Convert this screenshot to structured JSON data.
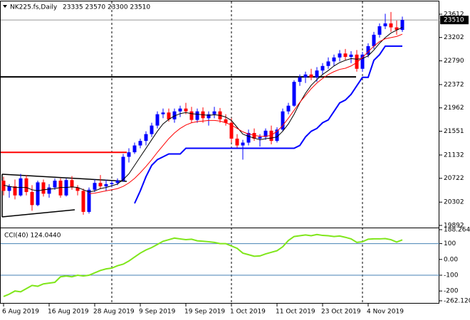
{
  "chart_data": [
    {
      "type": "candlestick",
      "title": "NK225.fs,Daily",
      "ohlc_label": "23335 23570 23300 23510",
      "categories": [
        "6 Aug 2019",
        null,
        null,
        null,
        null,
        null,
        null,
        null,
        "16 Aug 2019",
        null,
        null,
        null,
        null,
        null,
        null,
        null,
        "28 Aug 2019",
        null,
        null,
        null,
        null,
        null,
        null,
        null,
        "9 Sep 2019",
        null,
        null,
        null,
        null,
        null,
        null,
        null,
        "19 Sep 2019",
        null,
        null,
        null,
        null,
        null,
        null,
        null,
        "1 Oct 2019",
        null,
        null,
        null,
        null,
        null,
        null,
        null,
        "11 Oct 2019",
        null,
        null,
        null,
        null,
        null,
        null,
        null,
        "23 Oct 2019",
        null,
        null,
        null,
        null,
        null,
        null,
        null,
        "4 Nov 2019",
        null,
        null,
        null,
        null,
        null,
        null
      ],
      "open": [
        20680,
        20500,
        20580,
        20420,
        20720,
        20480,
        20250,
        20650,
        20450,
        20560,
        20680,
        20420,
        20690,
        20560,
        20500,
        20130,
        20520,
        20640,
        20580,
        20620,
        20640,
        20680,
        21100,
        21180,
        21300,
        21380,
        21500,
        21650,
        21850,
        21880,
        21760,
        21900,
        21950,
        21900,
        21750,
        21900,
        21780,
        21850,
        21900,
        21760,
        21700,
        21420,
        21300,
        21350,
        21520,
        21420,
        21450,
        21560,
        21380,
        21580,
        21900,
        22000,
        22420,
        22500,
        22550,
        22500,
        22620,
        22700,
        22780,
        22850,
        22920,
        22860,
        22900,
        22650,
        22900,
        23050,
        23250,
        23400,
        23450,
        23380,
        23335
      ],
      "high": [
        20750,
        20620,
        20700,
        20800,
        20780,
        20600,
        20680,
        20700,
        20620,
        20720,
        20720,
        20720,
        20760,
        20600,
        20540,
        20560,
        20700,
        20780,
        20700,
        20680,
        20720,
        21150,
        21250,
        21350,
        21420,
        21550,
        21700,
        21900,
        21950,
        21950,
        21950,
        22000,
        22050,
        21980,
        21950,
        21970,
        21900,
        21980,
        21960,
        21850,
        21780,
        21500,
        21400,
        21580,
        21600,
        21500,
        21600,
        21650,
        21620,
        21950,
        22050,
        22450,
        22550,
        22600,
        22650,
        22680,
        22750,
        22850,
        22900,
        22980,
        23000,
        22960,
        22980,
        22950,
        23100,
        23300,
        23450,
        23620,
        23650,
        23500,
        23570
      ],
      "low": [
        20420,
        20380,
        20350,
        20400,
        20420,
        20150,
        20230,
        20400,
        20380,
        20520,
        20380,
        20400,
        20520,
        20420,
        20080,
        20100,
        20480,
        20540,
        20500,
        20560,
        20600,
        20660,
        21000,
        21150,
        21250,
        21300,
        21450,
        21600,
        21780,
        21720,
        21700,
        21800,
        21850,
        21700,
        21700,
        21700,
        21650,
        21780,
        21700,
        21650,
        21350,
        21250,
        21050,
        21300,
        21380,
        21280,
        21400,
        21320,
        21350,
        21550,
        21850,
        21980,
        22350,
        22400,
        22450,
        22420,
        22550,
        22650,
        22700,
        22780,
        22800,
        22750,
        22600,
        22600,
        22850,
        23000,
        23200,
        23350,
        23300,
        23250,
        23300
      ],
      "close": [
        20500,
        20580,
        20420,
        20720,
        20480,
        20250,
        20650,
        20450,
        20560,
        20680,
        20420,
        20690,
        20560,
        20500,
        20130,
        20520,
        20640,
        20580,
        20620,
        20640,
        20680,
        21100,
        21180,
        21300,
        21380,
        21500,
        21650,
        21850,
        21880,
        21760,
        21900,
        21950,
        21900,
        21750,
        21900,
        21780,
        21850,
        21900,
        21760,
        21700,
        21420,
        21300,
        21350,
        21520,
        21420,
        21450,
        21560,
        21380,
        21580,
        21900,
        22000,
        22420,
        22500,
        22550,
        22500,
        22620,
        22700,
        22780,
        22850,
        22920,
        22860,
        22900,
        22650,
        22900,
        23050,
        23250,
        23400,
        23450,
        23380,
        23335,
        23510
      ],
      "up_color": "#0000ff",
      "down_color": "#ff0000",
      "series": [
        {
          "color": "#000000",
          "width": 1,
          "values": [
            20600,
            20580,
            20560,
            20560,
            20560,
            20520,
            20500,
            20520,
            20530,
            20540,
            20560,
            20560,
            20570,
            20560,
            20520,
            20480,
            20500,
            20540,
            20560,
            20590,
            20620,
            20700,
            20800,
            20950,
            21100,
            21250,
            21400,
            21550,
            21680,
            21760,
            21820,
            21860,
            21880,
            21860,
            21850,
            21840,
            21830,
            21840,
            21830,
            21800,
            21740,
            21620,
            21500,
            21460,
            21430,
            21400,
            21420,
            21430,
            21450,
            21550,
            21680,
            21850,
            22050,
            22220,
            22360,
            22460,
            22550,
            22620,
            22700,
            22760,
            22800,
            22830,
            22820,
            22830,
            22880,
            22980,
            23100,
            23200,
            23280,
            23330,
            23380
          ]
        },
        {
          "color": "#ff0000",
          "width": 1,
          "values": [
            null,
            null,
            null,
            null,
            null,
            null,
            null,
            null,
            null,
            null,
            null,
            null,
            null,
            null,
            null,
            20450,
            20460,
            20480,
            20500,
            20520,
            20540,
            20580,
            20640,
            20720,
            20820,
            20930,
            21050,
            21180,
            21300,
            21420,
            21520,
            21600,
            21660,
            21700,
            21720,
            21730,
            21740,
            21740,
            21730,
            21700,
            21660,
            21600,
            21540,
            21500,
            21480,
            21460,
            21460,
            21480,
            21550,
            21650,
            21780,
            21920,
            22060,
            22180,
            22300,
            22400,
            22480,
            22550,
            22600,
            22640,
            22660,
            22700,
            22760,
            22850,
            22950,
            23050,
            23130,
            23180,
            23200,
            23220,
            23260
          ]
        },
        {
          "color": "#0000ff",
          "width": 2,
          "values": [
            null,
            null,
            null,
            null,
            null,
            null,
            null,
            null,
            null,
            null,
            null,
            null,
            null,
            null,
            null,
            null,
            null,
            null,
            null,
            null,
            null,
            null,
            null,
            20280,
            20500,
            20750,
            20950,
            21050,
            21100,
            21150,
            21150,
            21150,
            21250,
            21250,
            21250,
            21250,
            21250,
            21250,
            21250,
            21250,
            21250,
            21250,
            21250,
            21250,
            21250,
            21250,
            21250,
            21250,
            21250,
            21250,
            21250,
            21250,
            21300,
            21450,
            21550,
            21600,
            21700,
            21750,
            21900,
            22050,
            22100,
            22200,
            22350,
            22500,
            22500,
            22800,
            22900,
            23050,
            23050,
            23050,
            23050
          ]
        }
      ],
      "hlines": [
        {
          "value": 22507,
          "color": "#000000"
        },
        {
          "value": 21178,
          "color": "#ff0000"
        }
      ],
      "last_price": 23510,
      "ylim": [
        19879,
        23837
      ],
      "yticks": [
        23612,
        23202,
        22790,
        22372,
        21962,
        21551,
        21132,
        20722,
        20302,
        19892
      ]
    },
    {
      "type": "line",
      "title": "CCI(40) 124.0440",
      "color": "#7fe61a",
      "values": [
        -235,
        -220,
        -200,
        -205,
        -185,
        -165,
        -170,
        -155,
        -150,
        -145,
        -110,
        -105,
        -110,
        -100,
        -105,
        -100,
        -85,
        -70,
        -60,
        -55,
        -40,
        -30,
        -10,
        15,
        40,
        60,
        75,
        95,
        115,
        125,
        135,
        130,
        125,
        128,
        118,
        115,
        112,
        108,
        100,
        100,
        85,
        70,
        40,
        30,
        20,
        22,
        35,
        45,
        55,
        80,
        120,
        145,
        150,
        155,
        150,
        158,
        152,
        150,
        145,
        148,
        140,
        130,
        108,
        112,
        128,
        130,
        130,
        132,
        125,
        110,
        124.044
      ],
      "levels": [
        100,
        -100
      ],
      "level_color": "#4682b4",
      "ylim": [
        -262.12,
        188.2646
      ],
      "yticks": [
        188.2646,
        100,
        {
          "value": 0,
          "label": "0.00"
        },
        -100,
        -200,
        {
          "value": -262.12,
          "label": "-262.120"
        }
      ]
    }
  ]
}
